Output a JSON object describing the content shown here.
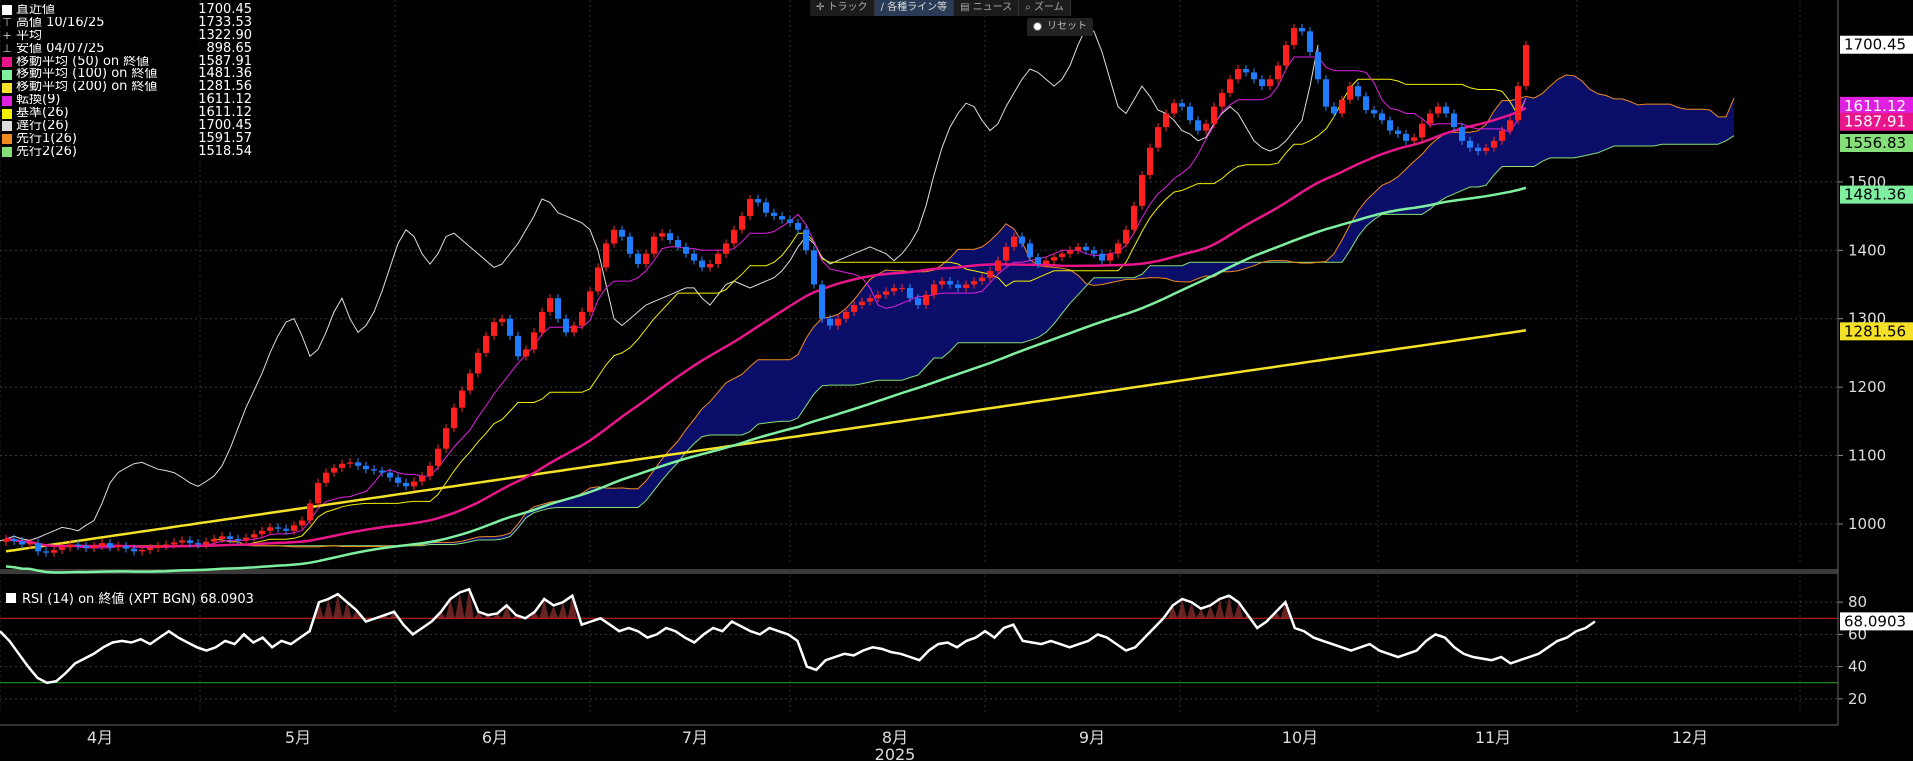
{
  "toolbar": {
    "items": [
      "トラック",
      "各種ライン等",
      "ニュース",
      "ズーム"
    ],
    "reset": "リセット"
  },
  "legend": [
    {
      "label": "直近値",
      "value": "1700.45",
      "color": "#ffffff",
      "symbol": ""
    },
    {
      "label": "高値 10/16/25",
      "value": "1733.53",
      "color": "",
      "symbol": "⊤"
    },
    {
      "label": "平均",
      "value": "1322.90",
      "color": "",
      "symbol": "+"
    },
    {
      "label": "安値 04/07/25",
      "value": "898.65",
      "color": "",
      "symbol": "⊥"
    },
    {
      "label": "移動平均 (50) on 終値",
      "value": "1587.91",
      "color": "#e8168a",
      "symbol": ""
    },
    {
      "label": "移動平均 (100) on 終値",
      "value": "1481.36",
      "color": "#7ef0a0",
      "symbol": ""
    },
    {
      "label": "移動平均 (200) on 終値",
      "value": "1281.56",
      "color": "#f5e228",
      "symbol": ""
    },
    {
      "label": "転換(9)",
      "value": "1611.12",
      "color": "#e020e0",
      "symbol": ""
    },
    {
      "label": "基準(26)",
      "value": "1611.12",
      "color": "#f5f000",
      "symbol": ""
    },
    {
      "label": "遅行(26)",
      "value": "1700.45",
      "color": "#dddddd",
      "symbol": ""
    },
    {
      "label": "先行1(26)",
      "value": "1591.57",
      "color": "#f08a20",
      "symbol": ""
    },
    {
      "label": "先行2(26)",
      "value": "1518.54",
      "color": "#86e07a",
      "symbol": ""
    }
  ],
  "rsi_legend": "RSI (14)  on 終値 (XPT BGN) 68.0903",
  "chart_data": [
    {
      "type": "candlestick",
      "ylim": [
        940,
        1760
      ],
      "yticks": [
        1000,
        1100,
        1200,
        1300,
        1400,
        1500
      ],
      "xlabels": [
        "4月",
        "5月",
        "6月",
        "7月",
        "8月",
        "9月",
        "10月",
        "11月",
        "12月"
      ],
      "xlabel_year": "2025",
      "grid": true,
      "series": [
        {
          "name": "直近値",
          "kind": "candles",
          "closes": [
            978,
            975,
            970,
            972,
            960,
            958,
            962,
            966,
            970,
            968,
            965,
            968,
            972,
            966,
            968,
            964,
            960,
            962,
            965,
            968,
            970,
            973,
            976,
            972,
            970,
            974,
            978,
            982,
            978,
            976,
            980,
            985,
            990,
            995,
            993,
            990,
            998,
            1005,
            1030,
            1060,
            1075,
            1082,
            1088,
            1090,
            1085,
            1080,
            1078,
            1075,
            1068,
            1060,
            1055,
            1062,
            1070,
            1085,
            1110,
            1140,
            1170,
            1195,
            1220,
            1250,
            1275,
            1295,
            1300,
            1275,
            1245,
            1255,
            1280,
            1310,
            1330,
            1300,
            1280,
            1290,
            1310,
            1340,
            1375,
            1410,
            1430,
            1420,
            1395,
            1380,
            1395,
            1420,
            1425,
            1415,
            1405,
            1395,
            1385,
            1375,
            1380,
            1395,
            1410,
            1430,
            1450,
            1475,
            1470,
            1455,
            1450,
            1445,
            1440,
            1430,
            1400,
            1350,
            1300,
            1290,
            1300,
            1310,
            1320,
            1325,
            1330,
            1335,
            1340,
            1345,
            1345,
            1330,
            1320,
            1335,
            1350,
            1355,
            1350,
            1345,
            1350,
            1355,
            1360,
            1370,
            1385,
            1405,
            1420,
            1410,
            1390,
            1380,
            1385,
            1390,
            1395,
            1400,
            1405,
            1400,
            1395,
            1385,
            1395,
            1410,
            1430,
            1465,
            1510,
            1550,
            1580,
            1600,
            1615,
            1610,
            1590,
            1575,
            1585,
            1610,
            1630,
            1650,
            1665,
            1660,
            1650,
            1640,
            1650,
            1670,
            1700,
            1725,
            1720,
            1690,
            1650,
            1610,
            1600,
            1620,
            1640,
            1625,
            1605,
            1600,
            1590,
            1575,
            1570,
            1560,
            1565,
            1585,
            1600,
            1610,
            1600,
            1580,
            1560,
            1550,
            1545,
            1550,
            1560,
            1575,
            1590,
            1640,
            1700
          ]
        },
        {
          "name": "移動平均 (50) on 終値",
          "value": 1587.91,
          "color": "#e8168a"
        },
        {
          "name": "移動平均 (100) on 終値",
          "value": 1481.36,
          "color": "#7ef0a0"
        },
        {
          "name": "移動平均 (200) on 終値",
          "value": 1281.56,
          "color": "#f5e228"
        },
        {
          "name": "転換(9)",
          "value": 1611.12,
          "color": "#e020e0"
        },
        {
          "name": "基準(26)",
          "value": 1611.12,
          "color": "#f5f000"
        },
        {
          "name": "遅行(26)",
          "value": 1700.45,
          "color": "#dddddd"
        },
        {
          "name": "先行1(26)",
          "value": 1591.57,
          "color": "#f08a20"
        },
        {
          "name": "先行2(26)",
          "value": 1518.54,
          "color": "#86e07a"
        }
      ],
      "price_tags": [
        {
          "value": 1700.45,
          "text": "1700.45",
          "bg": "#ffffff",
          "fg": "#000000"
        },
        {
          "value": 1611.12,
          "text": "1611.12",
          "bg": "#e020e0",
          "fg": "#ffffff"
        },
        {
          "value": 1587.91,
          "text": "1587.91",
          "bg": "#e8168a",
          "fg": "#ffffff"
        },
        {
          "value": 1556.83,
          "text": "1556.83",
          "bg": "#86e07a",
          "fg": "#000000"
        },
        {
          "value": 1481.36,
          "text": "1481.36",
          "bg": "#7ef0a0",
          "fg": "#000000"
        },
        {
          "value": 1281.56,
          "text": "1281.56",
          "bg": "#f5e228",
          "fg": "#000000"
        }
      ]
    },
    {
      "type": "line",
      "ylim": [
        10,
        95
      ],
      "yticks": [
        20,
        40,
        60,
        80
      ],
      "overbought": 70,
      "oversold": 30,
      "series": [
        {
          "name": "RSI (14)",
          "value": 68.0903,
          "color": "#ffffff",
          "values": [
            62,
            56,
            48,
            40,
            33,
            30,
            31,
            36,
            42,
            45,
            48,
            52,
            55,
            56,
            55,
            57,
            54,
            58,
            62,
            58,
            55,
            52,
            50,
            52,
            56,
            54,
            60,
            55,
            58,
            52,
            56,
            54,
            58,
            62,
            80,
            82,
            85,
            80,
            75,
            68,
            70,
            72,
            74,
            66,
            60,
            64,
            68,
            74,
            82,
            86,
            88,
            74,
            72,
            73,
            78,
            72,
            70,
            74,
            82,
            78,
            80,
            84,
            66,
            68,
            70,
            66,
            62,
            64,
            62,
            58,
            60,
            64,
            62,
            58,
            55,
            60,
            64,
            62,
            68,
            65,
            62,
            60,
            64,
            62,
            60,
            56,
            40,
            38,
            44,
            46,
            48,
            47,
            50,
            52,
            51,
            49,
            48,
            46,
            44,
            50,
            54,
            55,
            52,
            56,
            58,
            62,
            58,
            64,
            66,
            56,
            55,
            54,
            56,
            54,
            52,
            54,
            56,
            60,
            58,
            54,
            50,
            52,
            58,
            64,
            70,
            78,
            82,
            80,
            76,
            78,
            82,
            84,
            80,
            72,
            64,
            68,
            74,
            80,
            64,
            62,
            58,
            56,
            54,
            52,
            50,
            52,
            54,
            50,
            48,
            46,
            48,
            50,
            56,
            60,
            58,
            52,
            48,
            46,
            45,
            44,
            46,
            42,
            44,
            46,
            48,
            52,
            56,
            58,
            62,
            64,
            68
          ]
        }
      ]
    }
  ]
}
